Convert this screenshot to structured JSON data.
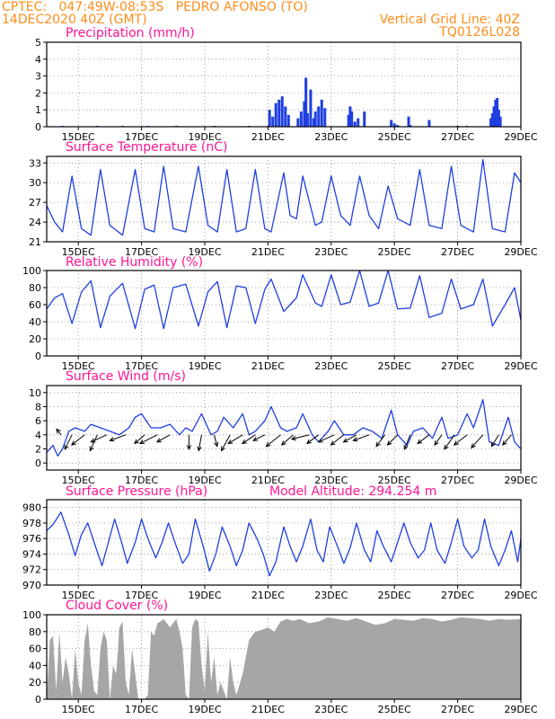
{
  "header": {
    "line1_left": "CPTEC:   047:49W-08:53S   PEDRO AFONSO (TO)",
    "line2_left": "14DEC2020 40Z (GMT)",
    "line2_right": "Vertical Grid Line: 40Z",
    "line3_right": "TQ0126L028"
  },
  "colors": {
    "header": "#ff8c1a",
    "title": "#ff1493",
    "line": "#1f3fe0",
    "bar": "#1f3fe0",
    "cloud": "#a6a6a6",
    "frame": "#000000",
    "grid": "#8a8a8a"
  },
  "model_altitude": "Model Altitude: 294.254 m",
  "chart_data": [
    {
      "type": "bar",
      "title": "Precipitation (mm/h)",
      "xlim": [
        14,
        29
      ],
      "xticks": [
        15,
        17,
        19,
        21,
        23,
        25,
        27,
        29
      ],
      "xtick_labels": [
        "15DEC",
        "17DEC",
        "19DEC",
        "21DEC",
        "23DEC",
        "25DEC",
        "27DEC",
        "29DEC"
      ],
      "ylim": [
        0,
        5
      ],
      "yticks": [
        0,
        1,
        2,
        3,
        4,
        5
      ],
      "grid": true,
      "x": [
        14.5,
        15.6,
        16.4,
        17.2,
        18.1,
        19.3,
        20.4,
        21.0,
        21.05,
        21.15,
        21.25,
        21.35,
        21.45,
        21.55,
        21.65,
        21.95,
        22.05,
        22.15,
        22.2,
        22.25,
        22.35,
        22.45,
        22.5,
        22.6,
        22.7,
        22.8,
        23.55,
        23.6,
        23.65,
        23.75,
        23.85,
        24.05,
        24.9,
        25.0,
        25.1,
        25.45,
        25.5,
        26.1,
        27.0,
        27.3,
        28.05,
        28.1,
        28.15,
        28.2,
        28.25,
        28.3,
        28.35
      ],
      "values": [
        0.05,
        0.05,
        0.05,
        0.05,
        0.05,
        0.05,
        0.05,
        0.05,
        1.0,
        0.6,
        1.4,
        1.6,
        1.8,
        1.2,
        0.7,
        0.5,
        0.9,
        1.5,
        2.9,
        0.8,
        2.2,
        0.5,
        0.9,
        1.2,
        1.6,
        1.1,
        0.7,
        1.2,
        0.9,
        0.3,
        0.5,
        0.9,
        0.4,
        0.2,
        0.1,
        0.6,
        0.1,
        0.4,
        0.05,
        0.05,
        0.5,
        0.8,
        1.2,
        1.6,
        1.7,
        1.0,
        0.6
      ]
    },
    {
      "type": "line",
      "title": "Surface Temperature (nC)",
      "xlim": [
        14,
        29
      ],
      "xticks": [
        15,
        17,
        19,
        21,
        23,
        25,
        27,
        29
      ],
      "xtick_labels": [
        "15DEC",
        "17DEC",
        "19DEC",
        "21DEC",
        "23DEC",
        "25DEC",
        "27DEC",
        "29DEC"
      ],
      "ylim": [
        21,
        34
      ],
      "yticks": [
        21,
        24,
        27,
        30,
        33
      ],
      "grid": true,
      "x": [
        14.0,
        14.25,
        14.5,
        14.8,
        15.1,
        15.4,
        15.7,
        16.0,
        16.4,
        16.8,
        17.1,
        17.4,
        17.7,
        18.0,
        18.4,
        18.8,
        19.1,
        19.4,
        19.7,
        20.0,
        20.3,
        20.6,
        20.9,
        21.1,
        21.5,
        21.7,
        21.9,
        22.1,
        22.5,
        22.7,
        23.0,
        23.3,
        23.6,
        23.9,
        24.2,
        24.5,
        24.8,
        25.1,
        25.5,
        25.8,
        26.1,
        26.5,
        26.8,
        27.1,
        27.5,
        27.8,
        28.1,
        28.5,
        28.8,
        29.0
      ],
      "values": [
        26.5,
        24.0,
        22.5,
        31.0,
        23.0,
        22.0,
        32.0,
        23.5,
        22.0,
        32.0,
        23.0,
        22.5,
        32.5,
        23.0,
        22.5,
        32.5,
        23.5,
        22.5,
        32.0,
        22.5,
        23.0,
        32.0,
        23.0,
        22.5,
        31.5,
        25.0,
        24.5,
        31.0,
        23.5,
        24.0,
        31.0,
        25.0,
        23.5,
        31.0,
        25.0,
        23.0,
        29.5,
        24.5,
        23.5,
        32.0,
        23.5,
        23.0,
        32.5,
        23.5,
        22.5,
        33.5,
        23.0,
        22.5,
        31.5,
        30.0
      ]
    },
    {
      "type": "line",
      "title": "Relative Humidity (%)",
      "xlim": [
        14,
        29
      ],
      "xticks": [
        15,
        17,
        19,
        21,
        23,
        25,
        27,
        29
      ],
      "xtick_labels": [
        "15DEC",
        "17DEC",
        "19DEC",
        "21DEC",
        "23DEC",
        "25DEC",
        "27DEC",
        "29DEC"
      ],
      "ylim": [
        0,
        100
      ],
      "yticks": [
        0,
        20,
        40,
        60,
        80,
        100
      ],
      "grid": true,
      "x": [
        14.0,
        14.25,
        14.5,
        14.8,
        15.1,
        15.4,
        15.7,
        16.0,
        16.4,
        16.8,
        17.1,
        17.4,
        17.7,
        18.0,
        18.4,
        18.8,
        19.1,
        19.4,
        19.7,
        20.0,
        20.3,
        20.6,
        20.9,
        21.1,
        21.5,
        21.7,
        21.9,
        22.1,
        22.5,
        22.7,
        23.0,
        23.3,
        23.6,
        23.9,
        24.2,
        24.5,
        24.8,
        25.1,
        25.5,
        25.8,
        26.1,
        26.5,
        26.8,
        27.1,
        27.5,
        27.8,
        28.1,
        28.5,
        28.8,
        29.0
      ],
      "values": [
        55,
        68,
        73,
        38,
        75,
        88,
        33,
        70,
        85,
        32,
        78,
        83,
        32,
        80,
        84,
        35,
        75,
        87,
        33,
        82,
        80,
        38,
        78,
        90,
        52,
        60,
        68,
        95,
        62,
        58,
        95,
        60,
        63,
        100,
        58,
        62,
        100,
        55,
        56,
        94,
        45,
        50,
        90,
        55,
        60,
        90,
        35,
        60,
        80,
        42
      ]
    },
    {
      "type": "line",
      "title": "Surface Wind (m/s)",
      "xlim": [
        14,
        29
      ],
      "xticks": [
        15,
        17,
        19,
        21,
        23,
        25,
        27,
        29
      ],
      "xtick_labels": [
        "15DEC",
        "17DEC",
        "19DEC",
        "21DEC",
        "23DEC",
        "25DEC",
        "27DEC",
        "29DEC"
      ],
      "ylim": [
        -1,
        11
      ],
      "yticks": [
        0,
        2,
        4,
        6,
        8,
        10
      ],
      "grid": true,
      "x": [
        14.0,
        14.2,
        14.35,
        14.5,
        14.7,
        14.9,
        15.2,
        15.4,
        15.7,
        16.0,
        16.3,
        16.6,
        16.8,
        17.0,
        17.3,
        17.6,
        17.9,
        18.2,
        18.4,
        18.6,
        18.9,
        19.2,
        19.4,
        19.6,
        19.9,
        20.2,
        20.4,
        20.6,
        20.9,
        21.1,
        21.4,
        21.6,
        21.9,
        22.1,
        22.4,
        22.6,
        22.9,
        23.1,
        23.4,
        23.7,
        24.0,
        24.3,
        24.6,
        24.9,
        25.1,
        25.4,
        25.6,
        25.9,
        26.2,
        26.5,
        26.7,
        27.0,
        27.3,
        27.5,
        27.8,
        28.0,
        28.3,
        28.6,
        28.8,
        29.0
      ],
      "values": [
        1.5,
        2.5,
        1.0,
        2.0,
        4.5,
        5.0,
        4.5,
        5.5,
        5.0,
        4.5,
        4.0,
        5.0,
        6.5,
        7.0,
        5.0,
        5.0,
        5.5,
        4.0,
        5.0,
        4.5,
        7.0,
        4.0,
        4.5,
        6.5,
        5.0,
        7.0,
        4.0,
        4.5,
        6.0,
        8.0,
        5.0,
        4.5,
        5.0,
        7.0,
        4.0,
        3.0,
        4.5,
        6.0,
        4.0,
        4.0,
        5.0,
        4.5,
        3.5,
        7.5,
        4.0,
        2.5,
        4.5,
        5.0,
        3.5,
        6.5,
        3.5,
        4.0,
        7.0,
        5.0,
        9.0,
        3.0,
        2.5,
        6.5,
        3.0,
        2.0
      ],
      "vectors": [
        {
          "x": 14.45,
          "u": -0.3,
          "v": 0.4
        },
        {
          "x": 14.8,
          "u": -0.5,
          "v": -1.0
        },
        {
          "x": 15.2,
          "u": -0.9,
          "v": -0.7
        },
        {
          "x": 15.6,
          "u": -0.5,
          "v": -1.1
        },
        {
          "x": 15.9,
          "u": -1.1,
          "v": -0.5
        },
        {
          "x": 16.5,
          "u": -1.1,
          "v": -0.4
        },
        {
          "x": 17.1,
          "u": -0.7,
          "v": -0.6
        },
        {
          "x": 17.5,
          "u": -1.2,
          "v": -0.6
        },
        {
          "x": 17.9,
          "u": -0.9,
          "v": -0.5
        },
        {
          "x": 18.5,
          "u": 0.0,
          "v": -1.0
        },
        {
          "x": 18.9,
          "u": -0.2,
          "v": -1.1
        },
        {
          "x": 19.3,
          "u": 0.2,
          "v": -0.8
        },
        {
          "x": 19.8,
          "u": -0.6,
          "v": -1.1
        },
        {
          "x": 20.2,
          "u": -1.0,
          "v": -0.6
        },
        {
          "x": 20.6,
          "u": -0.9,
          "v": -0.6
        },
        {
          "x": 20.9,
          "u": -0.8,
          "v": -0.4
        },
        {
          "x": 21.4,
          "u": -1.0,
          "v": -0.8
        },
        {
          "x": 21.8,
          "u": -0.8,
          "v": -0.7
        },
        {
          "x": 22.3,
          "u": -1.2,
          "v": -0.3
        },
        {
          "x": 22.6,
          "u": -0.8,
          "v": -0.6
        },
        {
          "x": 23.1,
          "u": -1.1,
          "v": -0.5
        },
        {
          "x": 23.4,
          "u": -0.9,
          "v": -0.7
        },
        {
          "x": 23.8,
          "u": -0.9,
          "v": -0.5
        },
        {
          "x": 24.2,
          "u": -1.1,
          "v": -0.4
        },
        {
          "x": 24.7,
          "u": -0.6,
          "v": -0.8
        },
        {
          "x": 25.1,
          "u": -0.7,
          "v": -0.7
        },
        {
          "x": 25.5,
          "u": -0.4,
          "v": -1.0
        },
        {
          "x": 26.1,
          "u": -0.8,
          "v": -0.6
        },
        {
          "x": 26.5,
          "u": -0.5,
          "v": -0.7
        },
        {
          "x": 26.9,
          "u": -0.7,
          "v": -1.0
        },
        {
          "x": 27.3,
          "u": -0.9,
          "v": -0.7
        },
        {
          "x": 27.8,
          "u": -0.8,
          "v": -0.9
        },
        {
          "x": 28.3,
          "u": -0.5,
          "v": -0.8
        },
        {
          "x": 28.7,
          "u": -0.6,
          "v": -0.7
        }
      ]
    },
    {
      "type": "line",
      "title": "Surface Pressure (hPa)",
      "xlim": [
        14,
        29
      ],
      "xticks": [
        15,
        17,
        19,
        21,
        23,
        25,
        27,
        29
      ],
      "xtick_labels": [
        "15DEC",
        "17DEC",
        "19DEC",
        "21DEC",
        "23DEC",
        "25DEC",
        "27DEC",
        "29DEC"
      ],
      "ylim": [
        970,
        981
      ],
      "yticks": [
        970,
        972,
        974,
        976,
        978,
        980
      ],
      "grid": true,
      "x": [
        14.0,
        14.2,
        14.45,
        14.7,
        14.9,
        15.1,
        15.3,
        15.5,
        15.75,
        15.95,
        16.15,
        16.35,
        16.55,
        16.8,
        17.0,
        17.2,
        17.45,
        17.65,
        17.85,
        18.1,
        18.3,
        18.5,
        18.7,
        18.95,
        19.15,
        19.35,
        19.55,
        19.8,
        20.0,
        20.2,
        20.4,
        20.65,
        20.85,
        21.05,
        21.25,
        21.5,
        21.7,
        21.9,
        22.1,
        22.35,
        22.55,
        22.75,
        22.95,
        23.2,
        23.4,
        23.6,
        23.8,
        24.05,
        24.25,
        24.45,
        24.65,
        24.9,
        25.1,
        25.3,
        25.5,
        25.75,
        25.95,
        26.15,
        26.35,
        26.6,
        26.8,
        27.0,
        27.2,
        27.45,
        27.65,
        27.85,
        28.05,
        28.3,
        28.5,
        28.7,
        28.9,
        29.0
      ],
      "values": [
        977,
        977.8,
        979.4,
        976.5,
        973.8,
        976.5,
        978.0,
        975.5,
        972.5,
        975.5,
        978.5,
        975.8,
        972.8,
        975.5,
        978.5,
        976.0,
        973.5,
        975.5,
        978.0,
        975.0,
        972.8,
        974.0,
        978.5,
        975.0,
        971.8,
        974.0,
        977.5,
        975.0,
        972.5,
        974.5,
        978.0,
        976.0,
        974.0,
        971.2,
        973.0,
        977.5,
        975.0,
        973.0,
        975.0,
        978.5,
        974.5,
        973.0,
        977.5,
        975.0,
        972.8,
        974.8,
        978.0,
        974.5,
        973.0,
        977.0,
        975.0,
        973.0,
        975.5,
        978.0,
        975.5,
        973.5,
        974.5,
        978.0,
        974.5,
        972.8,
        975.5,
        978.5,
        975.0,
        973.5,
        974.5,
        978.5,
        975.0,
        972.5,
        974.5,
        977.0,
        973.0,
        976.0
      ]
    },
    {
      "type": "area",
      "title": "Cloud Cover (%)",
      "xlim": [
        14,
        29
      ],
      "xticks": [
        15,
        17,
        19,
        21,
        23,
        25,
        27,
        29
      ],
      "xtick_labels": [
        "15DEC",
        "17DEC",
        "19DEC",
        "21DEC",
        "23DEC",
        "25DEC",
        "27DEC",
        "29DEC"
      ],
      "ylim": [
        0,
        100
      ],
      "yticks": [
        0,
        20,
        40,
        60,
        80,
        100
      ],
      "grid": true,
      "x": [
        14.0,
        14.1,
        14.2,
        14.3,
        14.4,
        14.5,
        14.6,
        14.7,
        14.8,
        14.9,
        15.0,
        15.1,
        15.2,
        15.3,
        15.4,
        15.5,
        15.6,
        15.7,
        15.8,
        15.9,
        16.0,
        16.1,
        16.2,
        16.3,
        16.4,
        16.5,
        16.6,
        16.7,
        16.8,
        16.9,
        17.0,
        17.1,
        17.2,
        17.3,
        17.4,
        17.5,
        17.6,
        17.7,
        17.8,
        17.9,
        18.0,
        18.1,
        18.2,
        18.3,
        18.4,
        18.5,
        18.6,
        18.7,
        18.8,
        18.9,
        19.0,
        19.1,
        19.2,
        19.3,
        19.4,
        19.5,
        19.6,
        19.7,
        19.8,
        19.9,
        20.0,
        20.2,
        20.4,
        20.6,
        20.8,
        21.0,
        21.2,
        21.4,
        21.6,
        21.8,
        22.0,
        22.3,
        22.6,
        22.9,
        23.2,
        23.5,
        23.8,
        24.1,
        24.4,
        24.7,
        25.0,
        25.3,
        25.6,
        25.9,
        26.2,
        26.5,
        26.8,
        27.1,
        27.4,
        27.7,
        28.0,
        28.3,
        28.6,
        29.0
      ],
      "values": [
        0,
        70,
        75,
        10,
        80,
        20,
        50,
        30,
        0,
        60,
        20,
        5,
        70,
        90,
        40,
        10,
        5,
        60,
        80,
        70,
        0,
        40,
        30,
        85,
        92,
        20,
        5,
        60,
        30,
        0,
        0,
        0,
        5,
        80,
        75,
        90,
        92,
        95,
        90,
        85,
        90,
        95,
        80,
        60,
        5,
        0,
        85,
        95,
        92,
        40,
        10,
        80,
        20,
        50,
        5,
        20,
        10,
        0,
        50,
        20,
        5,
        30,
        70,
        80,
        82,
        85,
        80,
        92,
        95,
        93,
        95,
        90,
        92,
        97,
        95,
        93,
        96,
        92,
        88,
        90,
        95,
        94,
        93,
        96,
        95,
        92,
        94,
        97,
        96,
        95,
        93,
        95,
        94,
        95
      ]
    }
  ]
}
